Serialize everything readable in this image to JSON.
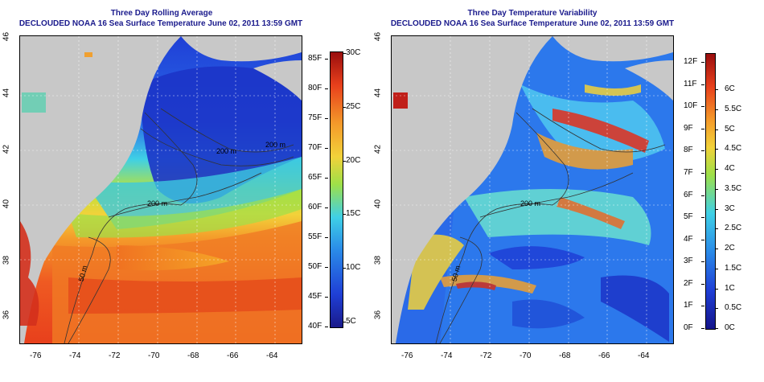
{
  "left_panel": {
    "title_line1": "Three Day Rolling Average",
    "title_line2": "DECLOUDED NOAA 16 Sea Surface Temperature June 02, 2011 13:59 GMT",
    "colorbar_f": [
      "40F",
      "45F",
      "50F",
      "55F",
      "60F",
      "65F",
      "70F",
      "75F",
      "80F",
      "85F"
    ],
    "colorbar_c": [
      "5C",
      "10C",
      "15C",
      "20C",
      "25C",
      "30C"
    ],
    "contour_labels": [
      "50 m",
      "200 m",
      "200 m",
      "200 m"
    ]
  },
  "right_panel": {
    "title_line1": "Three Day Temperature Variability",
    "title_line2": "DECLOUDED NOAA 16 Sea Surface Temperature June 02, 2011 13:59 GMT",
    "colorbar_f": [
      "0F",
      "1F",
      "2F",
      "3F",
      "4F",
      "5F",
      "6F",
      "7F",
      "8F",
      "9F",
      "10F",
      "11F",
      "12F"
    ],
    "colorbar_c": [
      "0C",
      "0.5C",
      "1C",
      "1.5C",
      "2C",
      "2.5C",
      "3C",
      "3.5C",
      "4C",
      "4.5C",
      "5C",
      "5.5C",
      "6C"
    ],
    "contour_labels": [
      "50 m",
      "200 m"
    ]
  },
  "axes": {
    "x_ticks": [
      "-76",
      "-74",
      "-72",
      "-70",
      "-68",
      "-66",
      "-64"
    ],
    "y_ticks": [
      "36",
      "38",
      "40",
      "42",
      "44",
      "46"
    ]
  },
  "colors": {
    "title": "#1a1a8c",
    "land": "#c8c8c8"
  }
}
